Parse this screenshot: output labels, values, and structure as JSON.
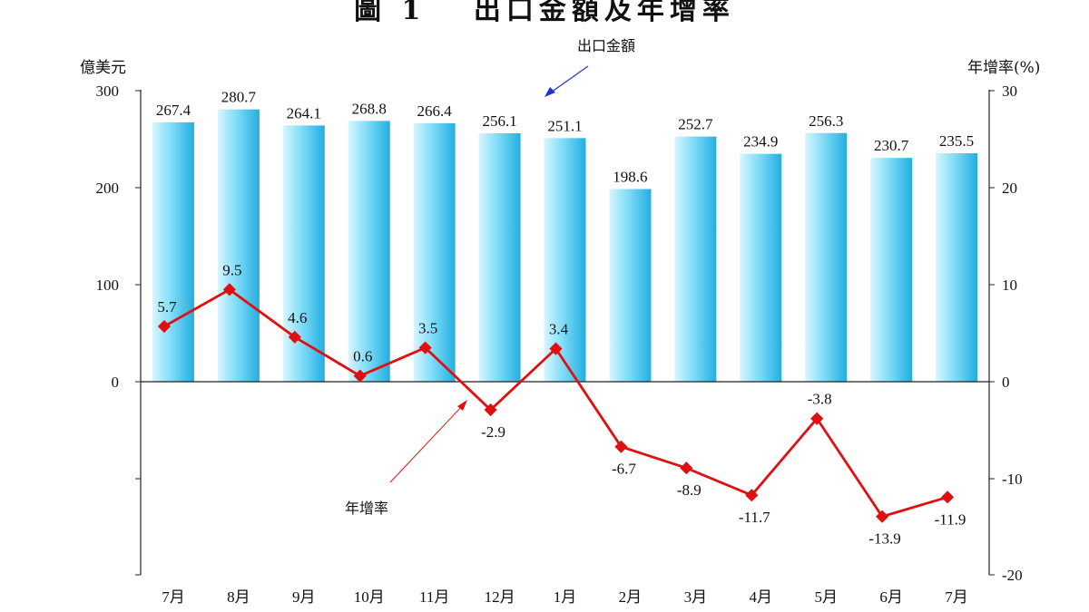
{
  "title": "圖 1　 出口金額及年增率",
  "left_axis_unit": "億美元",
  "right_axis_unit": "年增率(%)",
  "annotations": {
    "bar_series": "出口金額",
    "line_series": "年增率"
  },
  "colors": {
    "bar_light": "#e6f9ff",
    "bar_dark": "#29b6e8",
    "line": "#e01010"
  },
  "chart_data": {
    "type": "bar+line",
    "categories": [
      "7月",
      "8月",
      "9月",
      "10月",
      "11月",
      "12月",
      "1月",
      "2月",
      "3月",
      "4月",
      "5月",
      "6月",
      "7月"
    ],
    "series": [
      {
        "name": "出口金額",
        "axis": "left",
        "type": "bar",
        "values": [
          267.4,
          280.7,
          264.1,
          268.8,
          266.4,
          256.1,
          251.1,
          198.6,
          252.7,
          234.9,
          256.3,
          230.7,
          235.5
        ],
        "labels": [
          "267.4",
          "280.7",
          "264.1",
          "268.8",
          "266.4",
          "256.1",
          "251.1",
          "198.6",
          "252.7",
          "234.9",
          "256.3",
          "230.7",
          "235.5"
        ]
      },
      {
        "name": "年增率",
        "axis": "right",
        "type": "line",
        "values": [
          5.7,
          9.5,
          4.6,
          0.6,
          3.5,
          -2.9,
          3.4,
          -6.7,
          -8.9,
          -11.7,
          -3.8,
          -13.9,
          -11.9
        ],
        "labels": [
          "5.7",
          "9.5",
          "4.6",
          "0.6",
          "3.5",
          "-2.9",
          "3.4",
          "-6.7",
          "-8.9",
          "-11.7",
          "-3.8",
          "-13.9",
          "-11.9"
        ]
      }
    ],
    "left_axis": {
      "ticks": [
        "300",
        "200",
        "100",
        "0"
      ],
      "tick_values": [
        300,
        200,
        100,
        0
      ],
      "range": [
        -200,
        300
      ]
    },
    "right_axis": {
      "ticks": [
        "30",
        "20",
        "10",
        "0",
        "-10",
        "-20"
      ],
      "tick_values": [
        30,
        20,
        10,
        0,
        -10,
        -20
      ],
      "range": [
        -20,
        30
      ]
    }
  }
}
